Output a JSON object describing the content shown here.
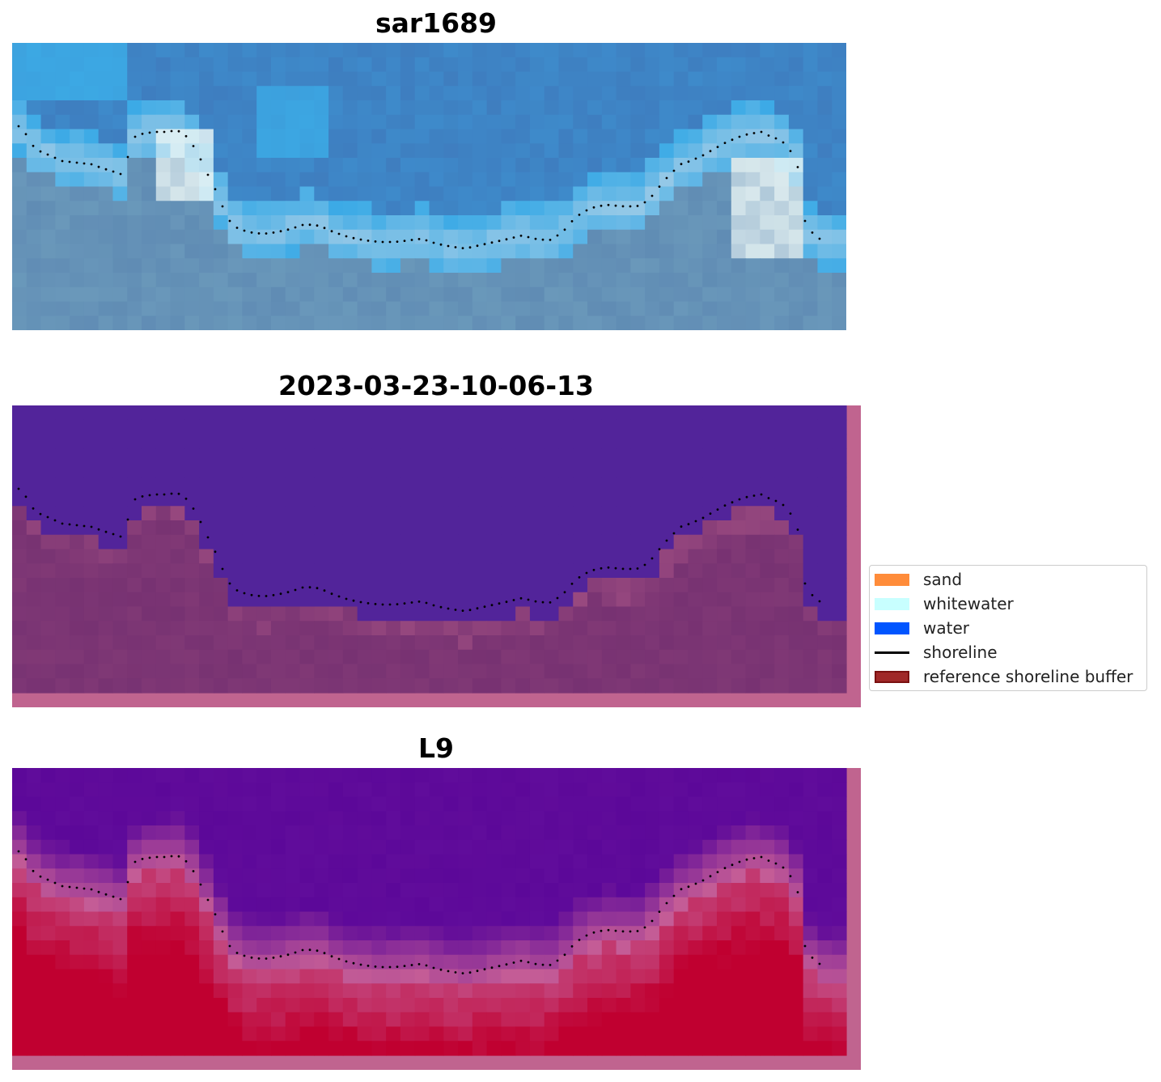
{
  "panels": [
    {
      "title": "sar1689"
    },
    {
      "title": "2023-03-23-10-06-13"
    },
    {
      "title": "L9"
    }
  ],
  "legend": {
    "items": [
      {
        "label": "sand",
        "kind": "patch",
        "color": "#ff8c3a"
      },
      {
        "label": "whitewater",
        "kind": "patch",
        "color": "#c8ffff"
      },
      {
        "label": "water",
        "kind": "patch",
        "color": "#0055ff"
      },
      {
        "label": "shoreline",
        "kind": "line",
        "color": "#000000"
      },
      {
        "label": "reference shoreline buffer",
        "kind": "patch",
        "color": "#a02828",
        "edge": "#7a1010"
      }
    ]
  },
  "colors": {
    "rgb_water_deep": "#3f75b8",
    "rgb_water_light": "#3bbcf5",
    "rgb_whitewater": "#eef8f6",
    "class_water": "#52249a",
    "class_land": "#773272",
    "class_buffer_edge": "#c0648f",
    "mndwi_low": "#5c0899",
    "mndwi_high": "#c00030"
  }
}
